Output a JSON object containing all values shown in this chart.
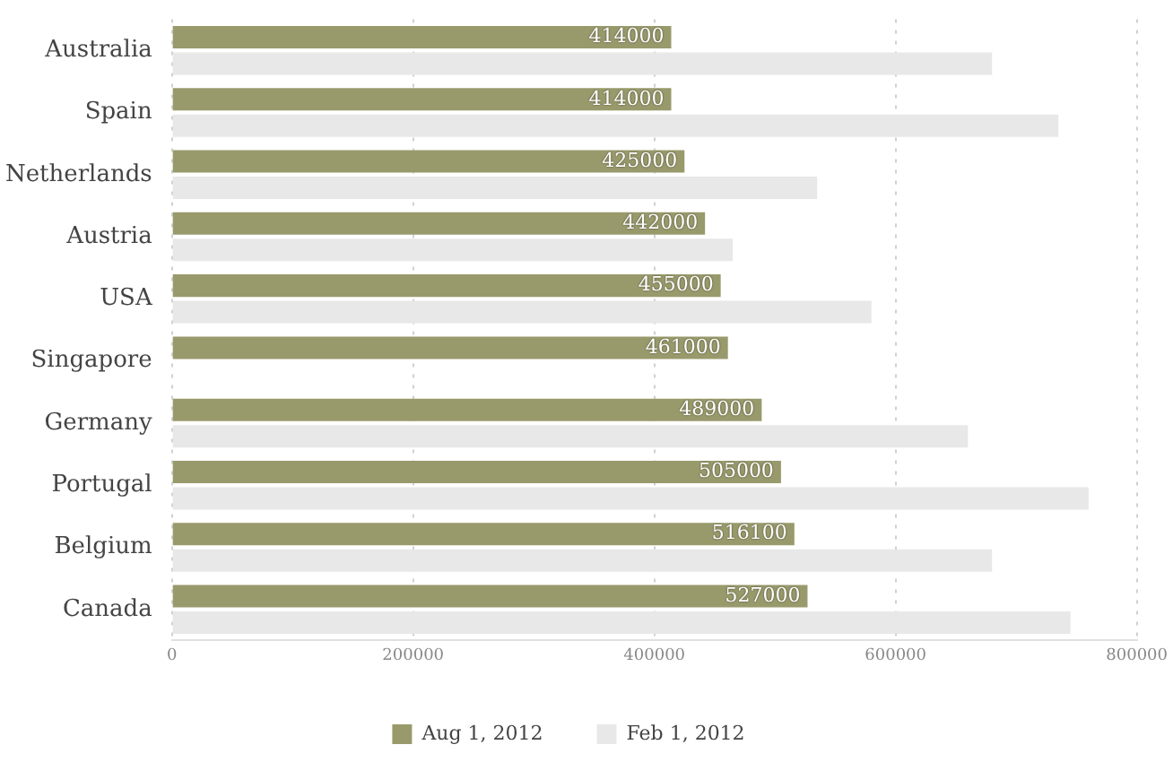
{
  "chart_data": {
    "type": "bar",
    "orientation": "horizontal",
    "categories": [
      "Australia",
      "Spain",
      "Netherlands",
      "Austria",
      "USA",
      "Singapore",
      "Germany",
      "Portugal",
      "Belgium",
      "Canada"
    ],
    "series": [
      {
        "name": "Aug 1, 2012",
        "color": "#999a6c",
        "values": [
          414000,
          414000,
          425000,
          442000,
          455000,
          461000,
          489000,
          505000,
          516100,
          527000
        ],
        "value_labels": [
          "414000",
          "414000",
          "425000",
          "442000",
          "455000",
          "461000",
          "489000",
          "505000",
          "516100",
          "527000"
        ]
      },
      {
        "name": "Feb 1, 2012",
        "color": "#e8e8e8",
        "values": [
          680000,
          735000,
          535000,
          465000,
          580000,
          null,
          660000,
          760000,
          680000,
          745000
        ]
      }
    ],
    "xlim": [
      0,
      800000
    ],
    "xticks": [
      0,
      200000,
      400000,
      600000,
      800000
    ],
    "grid": "x",
    "legend": "bottom"
  }
}
